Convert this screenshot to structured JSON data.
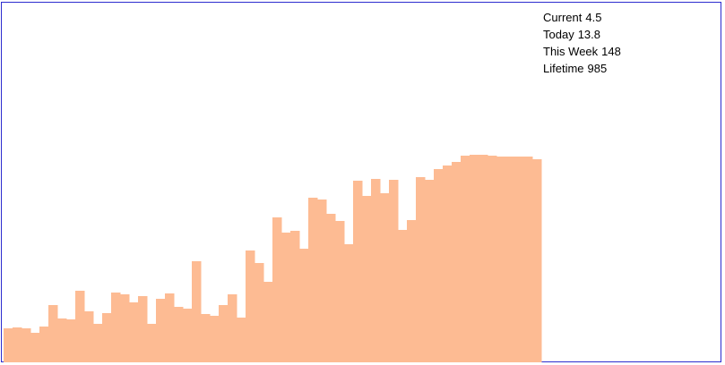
{
  "stats": {
    "current": {
      "label": "Current",
      "value": "4.5"
    },
    "today": {
      "label": "Today",
      "value": "13.8"
    },
    "this_week": {
      "label": "This Week",
      "value": "148"
    },
    "lifetime": {
      "label": "Lifetime",
      "value": "985"
    }
  },
  "colors": {
    "fill": "#fdbb93",
    "border": "#2c2ccf",
    "background": "#ffffff"
  },
  "chart_data": {
    "type": "area",
    "title": "",
    "xlabel": "",
    "ylabel": "",
    "grid": false,
    "ylim": [
      0,
      240
    ],
    "values": [
      38,
      39,
      38,
      33,
      40,
      64,
      49,
      48,
      80,
      57,
      43,
      55,
      78,
      76,
      67,
      74,
      43,
      71,
      77,
      62,
      60,
      113,
      54,
      52,
      64,
      76,
      50,
      125,
      111,
      90,
      162,
      145,
      147,
      127,
      184,
      182,
      166,
      158,
      132,
      203,
      186,
      205,
      189,
      204,
      148,
      159,
      207,
      204,
      216,
      220,
      224,
      231,
      232,
      232,
      231,
      230,
      230,
      230,
      230,
      227
    ]
  }
}
